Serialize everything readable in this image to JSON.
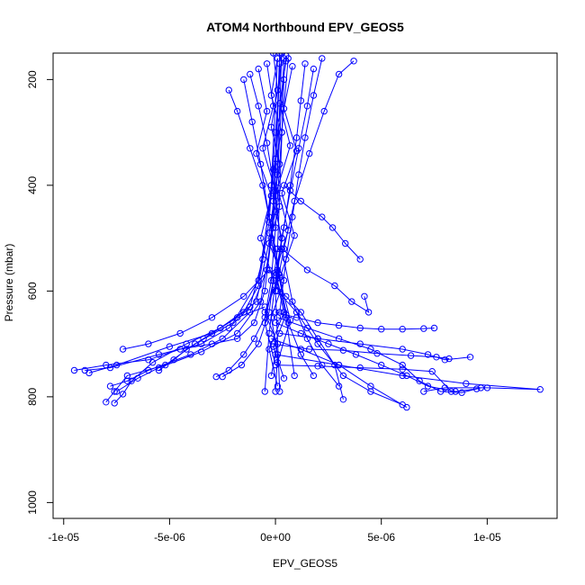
{
  "chart_data": {
    "type": "line",
    "title": "ATOM4 Northbound EPV_GEOS5",
    "xlabel": "EPV_GEOS5",
    "ylabel": "Pressure (mbar)",
    "xlim": [
      -1.05e-05,
      1.33e-05
    ],
    "ylim": [
      1030,
      150
    ],
    "y_reversed": true,
    "grid": false,
    "x_ticks": [
      {
        "value": -1e-05,
        "label": "-1e-05"
      },
      {
        "value": -5e-06,
        "label": "-5e-06"
      },
      {
        "value": 0,
        "label": "0e+00"
      },
      {
        "value": 5e-06,
        "label": "5e-06"
      },
      {
        "value": 1e-05,
        "label": "1e-05"
      }
    ],
    "y_ticks": [
      {
        "value": 200,
        "label": "200"
      },
      {
        "value": 400,
        "label": "400"
      },
      {
        "value": 600,
        "label": "600"
      },
      {
        "value": 800,
        "label": "800"
      },
      {
        "value": 1000,
        "label": "1000"
      }
    ],
    "series_color": "#0000ff",
    "marker": "open-circle",
    "series": [
      {
        "x": [
          -9.5e-06,
          -8e-06,
          -6e-06,
          -4.5e-06,
          -3e-06,
          -1.8e-06,
          -1e-06,
          -5e-07,
          -2e-07,
          0,
          2e-07
        ],
        "y": [
          750,
          740,
          730,
          710,
          700,
          690,
          660,
          600,
          500,
          350,
          150
        ]
      },
      {
        "x": [
          -9e-06,
          -7.8e-06,
          -5.5e-06,
          -3.5e-06,
          -2.2e-06,
          -1.2e-06,
          -6e-07,
          -2e-07,
          1e-07
        ],
        "y": [
          750,
          745,
          720,
          700,
          670,
          630,
          540,
          400,
          160
        ]
      },
      {
        "x": [
          -8.8e-06,
          -7.5e-06,
          -5e-06,
          -3e-06,
          -1.5e-06,
          -8e-07,
          -3e-07,
          0,
          3e-07
        ],
        "y": [
          755,
          740,
          705,
          680,
          640,
          590,
          470,
          300,
          150
        ]
      },
      {
        "x": [
          -7.8e-06,
          -7e-06,
          -6e-06,
          -4e-06,
          -2.5e-06,
          -1.2e-06,
          -4e-07,
          1e-07,
          4e-07
        ],
        "y": [
          780,
          770,
          750,
          720,
          690,
          640,
          560,
          380,
          160
        ]
      },
      {
        "x": [
          -7.5e-06,
          -6.5e-06,
          -5.5e-06,
          -3.5e-06,
          -1.8e-06,
          -7e-07,
          -1e-07,
          2e-07
        ],
        "y": [
          790,
          765,
          745,
          715,
          680,
          620,
          480,
          170
        ]
      },
      {
        "x": [
          -8e-06,
          -7.6e-06,
          -7e-06,
          -5.2e-06,
          -3.8e-06,
          -2e-06,
          -8e-07,
          -2e-07,
          5e-07
        ],
        "y": [
          810,
          790,
          760,
          740,
          700,
          660,
          580,
          420,
          155
        ]
      },
      {
        "x": [
          -7.6e-06,
          -7.2e-06,
          -6.8e-06,
          -5.8e-06,
          -4.2e-06,
          -2.6e-06,
          -9e-07,
          0,
          3e-07
        ],
        "y": [
          812,
          795,
          770,
          735,
          700,
          670,
          620,
          450,
          150
        ]
      },
      {
        "x": [
          -2.8e-06,
          -2.2e-06,
          -1.5e-06,
          -1e-06,
          -5e-07,
          -2e-07,
          0,
          3e-07,
          6e-07
        ],
        "y": [
          762,
          750,
          720,
          690,
          650,
          580,
          480,
          300,
          160
        ]
      },
      {
        "x": [
          -2.5e-06,
          -1.6e-06,
          -8e-07,
          -3e-07,
          1e-07,
          4e-07
        ],
        "y": [
          762,
          740,
          700,
          640,
          520,
          200
        ]
      },
      {
        "x": [
          -2.2e-06,
          -1.8e-06,
          -1.2e-06,
          -6e-07,
          0,
          5e-07,
          9e-07
        ],
        "y": [
          220,
          260,
          330,
          400,
          520,
          650,
          760
        ]
      },
      {
        "x": [
          -1.5e-06,
          -1.1e-06,
          -7e-07,
          -3e-07,
          1e-07,
          6e-07,
          1.2e-06,
          1.8e-06
        ],
        "y": [
          200,
          280,
          360,
          460,
          560,
          660,
          720,
          760
        ]
      },
      {
        "x": [
          -1.2e-06,
          -8e-07,
          -4e-07,
          0,
          3e-07,
          8e-07,
          1.5e-06,
          2.2e-06,
          3e-06
        ],
        "y": [
          190,
          250,
          320,
          420,
          520,
          620,
          690,
          740,
          780
        ]
      },
      {
        "x": [
          1.4e-06,
          1.2e-06,
          1e-06,
          7e-07,
          4e-07,
          0,
          -3e-07,
          -5e-07
        ],
        "y": [
          170,
          240,
          310,
          400,
          480,
          580,
          680,
          790
        ]
      },
      {
        "x": [
          1.8e-06,
          1.5e-06,
          1.1e-06,
          7e-07,
          3e-07,
          0,
          2e-07
        ],
        "y": [
          180,
          250,
          330,
          410,
          500,
          600,
          790
        ]
      },
      {
        "x": [
          2.2e-06,
          1.8e-06,
          1.4e-06,
          1.1e-06,
          8e-07,
          5e-07,
          2e-07
        ],
        "y": [
          160,
          230,
          310,
          380,
          460,
          540,
          640
        ]
      },
      {
        "x": [
          3.7e-06,
          3e-06,
          2.3e-06,
          1.6e-06,
          9e-07,
          4e-07,
          0
        ],
        "y": [
          165,
          190,
          260,
          340,
          430,
          520,
          600
        ]
      },
      {
        "x": [
          0,
          1e-06,
          2e-06,
          3e-06,
          4e-06,
          5e-06,
          6e-06,
          7e-06,
          7.5e-06
        ],
        "y": [
          640,
          650,
          660,
          665,
          670,
          672,
          672,
          671,
          670
        ]
      },
      {
        "x": [
          0,
          1.2e-06,
          2.5e-06,
          3.8e-06,
          5e-06,
          6.2e-06,
          7.2e-06,
          8.5e-06,
          9.5e-06
        ],
        "y": [
          660,
          680,
          700,
          720,
          740,
          760,
          780,
          790,
          785
        ]
      },
      {
        "x": [
          1e-07,
          1.5e-06,
          3e-06,
          4.5e-06,
          6e-06,
          6.8e-06,
          7.8e-06,
          8.8e-06,
          9.7e-06
        ],
        "y": [
          650,
          670,
          690,
          710,
          740,
          770,
          790,
          792,
          783
        ]
      },
      {
        "x": [
          2e-07,
          2e-06,
          4e-06,
          6e-06,
          7.2e-06,
          8e-06,
          9.2e-06
        ],
        "y": [
          680,
          690,
          700,
          710,
          720,
          730,
          725
        ]
      },
      {
        "x": [
          -1e-07,
          1.6e-06,
          3.2e-06,
          4.8e-06,
          6.4e-06,
          7.6e-06,
          8.2e-06
        ],
        "y": [
          700,
          710,
          712,
          718,
          722,
          725,
          728
        ]
      },
      {
        "x": [
          0,
          2e-06,
          4e-06,
          6e-06,
          7.4e-06,
          8.3e-06
        ],
        "y": [
          740,
          742,
          745,
          748,
          752,
          790
        ]
      },
      {
        "x": [
          0,
          3e-06,
          6e-06,
          9e-06,
          1.25e-05,
          1e-05,
          8e-06,
          7e-06
        ],
        "y": [
          720,
          740,
          760,
          775,
          786,
          783,
          783,
          790
        ]
      },
      {
        "x": [
          -2e-07,
          1.2e-06,
          3e-06,
          4.5e-06,
          6.2e-06
        ],
        "y": [
          690,
          710,
          740,
          780,
          820
        ]
      },
      {
        "x": [
          1e-07,
          1e-06,
          2e-06,
          3.2e-06,
          4.5e-06,
          6e-06
        ],
        "y": [
          600,
          640,
          700,
          760,
          790,
          815
        ]
      },
      {
        "x": [
          3e-07,
          1.5e-06,
          2.8e-06,
          3.6e-06,
          4.4e-06,
          4.2e-06
        ],
        "y": [
          520,
          560,
          590,
          620,
          640,
          610
        ]
      },
      {
        "x": [
          4e-07,
          1.2e-06,
          2.2e-06,
          2.7e-06,
          3.3e-06,
          4e-06
        ],
        "y": [
          400,
          430,
          460,
          480,
          510,
          540
        ]
      },
      {
        "x": [
          -3e-07,
          -1.5e-06,
          -3e-06,
          -4.5e-06,
          -6e-06,
          -7.2e-06
        ],
        "y": [
          560,
          610,
          650,
          680,
          700,
          710
        ]
      },
      {
        "x": [
          -5e-07,
          -1.8e-06,
          -2.6e-06,
          -3.4e-06,
          -4.2e-06,
          -4.8e-06,
          -5.5e-06
        ],
        "y": [
          630,
          650,
          670,
          690,
          710,
          730,
          750
        ]
      },
      {
        "x": [
          0,
          5e-07,
          1.2e-06,
          2e-06,
          2.8e-06,
          3.2e-06
        ],
        "y": [
          590,
          610,
          640,
          690,
          740,
          805
        ]
      },
      {
        "x": [
          -1e-07,
          1e-07,
          -2e-07,
          2e-07,
          -1e-07,
          3e-07,
          0,
          4e-07,
          -3e-07,
          1e-07
        ],
        "y": [
          150,
          220,
          290,
          360,
          430,
          500,
          570,
          640,
          710,
          780
        ]
      },
      {
        "x": [
          1e-07,
          -2e-07,
          3e-07,
          -1e-07,
          2e-07,
          -3e-07,
          4e-07,
          -2e-07,
          1e-07,
          0
        ],
        "y": [
          160,
          230,
          300,
          370,
          440,
          510,
          580,
          650,
          720,
          790
        ]
      },
      {
        "x": [
          -4e-07,
          -1e-07,
          -6e-07,
          0,
          -3e-07,
          2e-07,
          -5e-07,
          1e-07,
          -2e-07
        ],
        "y": [
          170,
          250,
          330,
          410,
          490,
          570,
          640,
          700,
          760
        ]
      },
      {
        "x": [
          5e-07,
          2e-07,
          7e-07,
          1e-07,
          6e-07,
          0,
          5e-07,
          -1e-07,
          4e-07
        ],
        "y": [
          165,
          245,
          325,
          405,
          485,
          565,
          645,
          705,
          765
        ]
      },
      {
        "x": [
          -8e-07,
          -4e-07,
          -9e-07,
          -2e-07,
          -7e-07,
          -1e-07,
          -5e-07,
          0
        ],
        "y": [
          180,
          260,
          340,
          420,
          500,
          580,
          660,
          740
        ]
      },
      {
        "x": [
          8e-07,
          4e-07,
          1e-06,
          3e-07,
          9e-07,
          2e-07,
          7e-07,
          1e-07
        ],
        "y": [
          175,
          255,
          335,
          415,
          495,
          575,
          655,
          735
        ]
      }
    ]
  }
}
